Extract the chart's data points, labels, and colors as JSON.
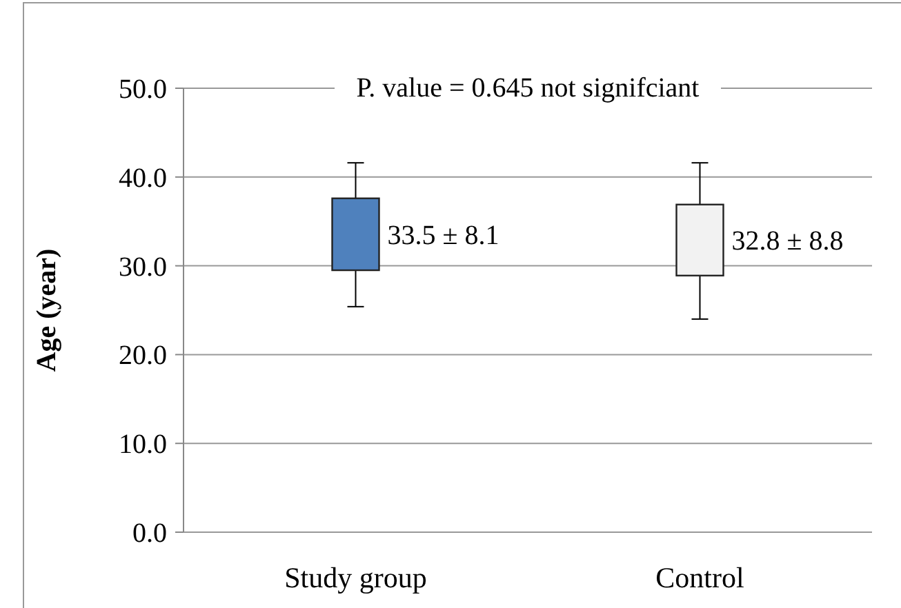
{
  "chart_data": {
    "type": "box",
    "ylabel": "Age (year)",
    "categories": [
      "Study group",
      "Control"
    ],
    "boxes": [
      {
        "low": 25.4,
        "q1": 29.5,
        "q3": 37.6,
        "high": 41.6
      },
      {
        "low": 24.0,
        "q1": 28.9,
        "q3": 36.9,
        "high": 41.6
      }
    ],
    "colors": [
      "#4f81bd",
      "#f2f2f2"
    ],
    "ylim": [
      0,
      50
    ],
    "yticks": [
      {
        "value": 0,
        "label": "0.0"
      },
      {
        "value": 10,
        "label": "10.0"
      },
      {
        "value": 20,
        "label": "20.0"
      },
      {
        "value": 30,
        "label": "30.0"
      },
      {
        "value": 40,
        "label": "40.0"
      },
      {
        "value": 50,
        "label": "50.0"
      }
    ],
    "grid": true,
    "annotations": [
      "P. value = 0.645 not signifciant",
      "33.5 ± 8.1",
      "32.8 ± 8.8"
    ]
  }
}
